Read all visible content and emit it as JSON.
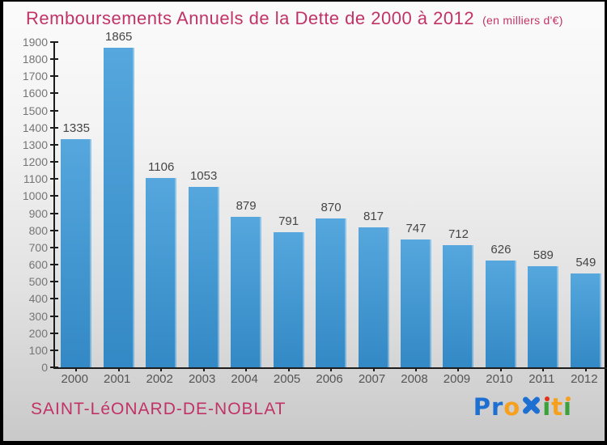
{
  "header": {
    "title": "Remboursements Annuels de la Dette de 2000 à 2012",
    "subtitle": "(en milliers d'€)"
  },
  "footer": {
    "commune": "SAINT-LéONARD-DE-NOBLAT",
    "logo_text": "Proxiti",
    "logo_segments": [
      {
        "text": "Pr",
        "color": "#1e6fd2"
      },
      {
        "text": "o",
        "color": "#f6a01e"
      },
      {
        "icon": "x",
        "color": "#1e6fd2"
      },
      {
        "i": true,
        "dot": "#e23317",
        "stem": "#3ba23b"
      },
      {
        "text": "t",
        "color": "#f6a01e"
      },
      {
        "i": true,
        "dot": "#f6a01e",
        "stem": "#3ba23b"
      }
    ]
  },
  "colors": {
    "accent_pink": "#c13366",
    "bar_top": "#55a7dd",
    "bar_bottom": "#3389c5",
    "axis": "#1c1c1c",
    "value_label": "#454545",
    "y_label": "#757575",
    "x_label": "#555555"
  },
  "chart_data": {
    "type": "bar",
    "title": "Remboursements Annuels de la Dette de 2000 à 2012",
    "unit": "en milliers d'€",
    "categories": [
      "2000",
      "2001",
      "2002",
      "2003",
      "2004",
      "2005",
      "2006",
      "2007",
      "2008",
      "2009",
      "2010",
      "2011",
      "2012"
    ],
    "values": [
      1335,
      1865,
      1106,
      1053,
      879,
      791,
      870,
      817,
      747,
      712,
      626,
      589,
      549
    ],
    "xlabel": "",
    "ylabel": "",
    "ylim": [
      0,
      1900
    ],
    "ytick_step": 100,
    "grid": false,
    "legend": false,
    "value_labels_shown": true
  }
}
